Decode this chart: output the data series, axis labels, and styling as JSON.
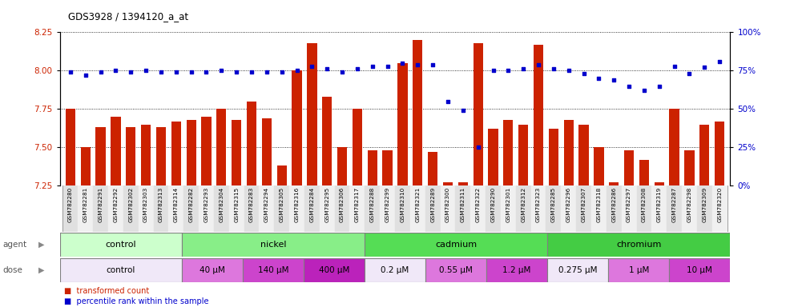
{
  "title": "GDS3928 / 1394120_a_at",
  "samples": [
    "GSM782280",
    "GSM782281",
    "GSM782291",
    "GSM782292",
    "GSM782302",
    "GSM782303",
    "GSM782313",
    "GSM782314",
    "GSM782282",
    "GSM782293",
    "GSM782304",
    "GSM782315",
    "GSM782283",
    "GSM782294",
    "GSM782305",
    "GSM782316",
    "GSM782284",
    "GSM782295",
    "GSM782306",
    "GSM782317",
    "GSM782288",
    "GSM782299",
    "GSM782310",
    "GSM782321",
    "GSM782289",
    "GSM782300",
    "GSM782311",
    "GSM782322",
    "GSM782290",
    "GSM782301",
    "GSM782312",
    "GSM782323",
    "GSM782285",
    "GSM782296",
    "GSM782307",
    "GSM782318",
    "GSM782286",
    "GSM782297",
    "GSM782308",
    "GSM782319",
    "GSM782287",
    "GSM782298",
    "GSM782309",
    "GSM782320"
  ],
  "bar_values": [
    7.75,
    7.5,
    7.63,
    7.7,
    7.63,
    7.65,
    7.63,
    7.67,
    7.68,
    7.7,
    7.75,
    7.68,
    7.8,
    7.69,
    7.38,
    8.0,
    8.18,
    7.83,
    7.5,
    7.75,
    7.48,
    7.48,
    8.05,
    8.2,
    7.47,
    7.27,
    7.27,
    8.18,
    7.62,
    7.68,
    7.65,
    8.17,
    7.62,
    7.68,
    7.65,
    7.5,
    7.27,
    7.48,
    7.42,
    7.27,
    7.75,
    7.48,
    7.65,
    7.67
  ],
  "percentile_values": [
    74,
    72,
    74,
    75,
    74,
    75,
    74,
    74,
    74,
    74,
    75,
    74,
    74,
    74,
    74,
    75,
    78,
    76,
    74,
    76,
    78,
    78,
    80,
    79,
    79,
    55,
    49,
    25,
    75,
    75,
    76,
    79,
    76,
    75,
    73,
    70,
    69,
    65,
    62,
    65,
    78,
    73,
    77,
    81
  ],
  "ylim_left": [
    7.25,
    8.25
  ],
  "ylim_right": [
    0,
    100
  ],
  "yticks_left": [
    7.25,
    7.5,
    7.75,
    8.0,
    8.25
  ],
  "yticks_right": [
    0,
    25,
    50,
    75,
    100
  ],
  "bar_color": "#cc2200",
  "dot_color": "#0000cc",
  "agent_groups": [
    {
      "label": "control",
      "start": 0,
      "end": 8,
      "color": "#ccffcc"
    },
    {
      "label": "nickel",
      "start": 8,
      "end": 20,
      "color": "#88ee88"
    },
    {
      "label": "cadmium",
      "start": 20,
      "end": 32,
      "color": "#55dd55"
    },
    {
      "label": "chromium",
      "start": 32,
      "end": 44,
      "color": "#44cc44"
    }
  ],
  "dose_groups": [
    {
      "label": "control",
      "start": 0,
      "end": 8,
      "color": "#f0e8f8"
    },
    {
      "label": "40 μM",
      "start": 8,
      "end": 12,
      "color": "#dd77dd"
    },
    {
      "label": "140 μM",
      "start": 12,
      "end": 16,
      "color": "#cc44cc"
    },
    {
      "label": "400 μM",
      "start": 16,
      "end": 20,
      "color": "#bb22bb"
    },
    {
      "label": "0.2 μM",
      "start": 20,
      "end": 24,
      "color": "#f0e8f8"
    },
    {
      "label": "0.55 μM",
      "start": 24,
      "end": 28,
      "color": "#dd77dd"
    },
    {
      "label": "1.2 μM",
      "start": 28,
      "end": 32,
      "color": "#cc44cc"
    },
    {
      "label": "0.275 μM",
      "start": 32,
      "end": 36,
      "color": "#f0e8f8"
    },
    {
      "label": "1 μM",
      "start": 36,
      "end": 40,
      "color": "#dd77dd"
    },
    {
      "label": "10 μM",
      "start": 40,
      "end": 44,
      "color": "#cc44cc"
    }
  ]
}
